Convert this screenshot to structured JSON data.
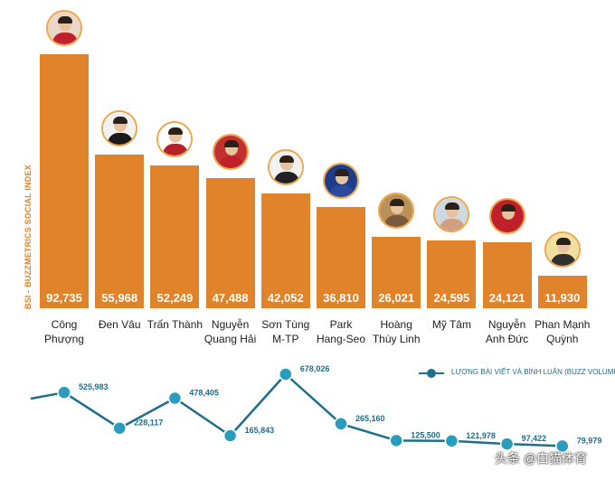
{
  "chart_data": [
    {
      "type": "bar",
      "ylabel": "BSI - BUZZMETRICS SOCIAL INDEX",
      "categories": [
        "Công\nPhượng",
        "Đen Vâu",
        "Trấn Thành",
        "Nguyễn\nQuang Hải",
        "Sơn Tùng\nM-TP",
        "Park\nHang-Seo",
        "Hoàng\nThùy Linh",
        "Mỹ Tâm",
        "Nguyễn\nAnh Đức",
        "Phan Mạnh\nQuỳnh"
      ],
      "values": [
        92735,
        55968,
        52249,
        47488,
        42052,
        36810,
        26021,
        24595,
        24121,
        11930
      ],
      "value_labels": [
        "92,735",
        "55,968",
        "52,249",
        "47,488",
        "42,052",
        "36,810",
        "26,021",
        "24,595",
        "24,121",
        "11,930"
      ],
      "ylim": [
        0,
        100000
      ],
      "color": "#e0832a"
    },
    {
      "type": "line",
      "series_name": "LƯỢNG BÀI VIẾT VÀ BÌNH LUẬN (BUZZ VOLUME)",
      "values": [
        525983,
        228117,
        478405,
        165843,
        678026,
        265160,
        125500,
        121978,
        97422,
        79979
      ],
      "value_labels": [
        "525,983",
        "228,117",
        "478,405",
        "165,843",
        "678,026",
        "265,160",
        "125,500",
        "121,978",
        "97,422",
        "79,979"
      ],
      "ylim": [
        0,
        700000
      ],
      "color": "#1e6e8c",
      "marker_color": "#2a9dbf"
    }
  ],
  "avatars": [
    {
      "name": "cong-phuong",
      "bg": "#e9d8c8",
      "shirt": "#c0202a"
    },
    {
      "name": "den-vau",
      "bg": "#f2f2f2",
      "shirt": "#1a1a1a"
    },
    {
      "name": "tran-thanh",
      "bg": "#ffffff",
      "shirt": "#b8202a"
    },
    {
      "name": "quang-hai",
      "bg": "#c23030",
      "shirt": "#c0202a"
    },
    {
      "name": "son-tung",
      "bg": "#f2f2f2",
      "shirt": "#222222"
    },
    {
      "name": "park-hang-seo",
      "bg": "#1e3c8c",
      "shirt": "#2a4aa0"
    },
    {
      "name": "hoang-thuy-linh",
      "bg": "#b89058",
      "shirt": "#7a5a3a"
    },
    {
      "name": "my-tam",
      "bg": "#d0d8e0",
      "shirt": "#d0a080"
    },
    {
      "name": "anh-duc",
      "bg": "#c0202a",
      "shirt": "#c0202a"
    },
    {
      "name": "phan-manh-quynh",
      "bg": "#f0e0a0",
      "shirt": "#303030"
    }
  ],
  "legend_label": "LƯỢNG BÀI VIẾT VÀ BÌNH LUẬN (BUZZ VOLUME)",
  "watermark": "头条 @白猫体育"
}
